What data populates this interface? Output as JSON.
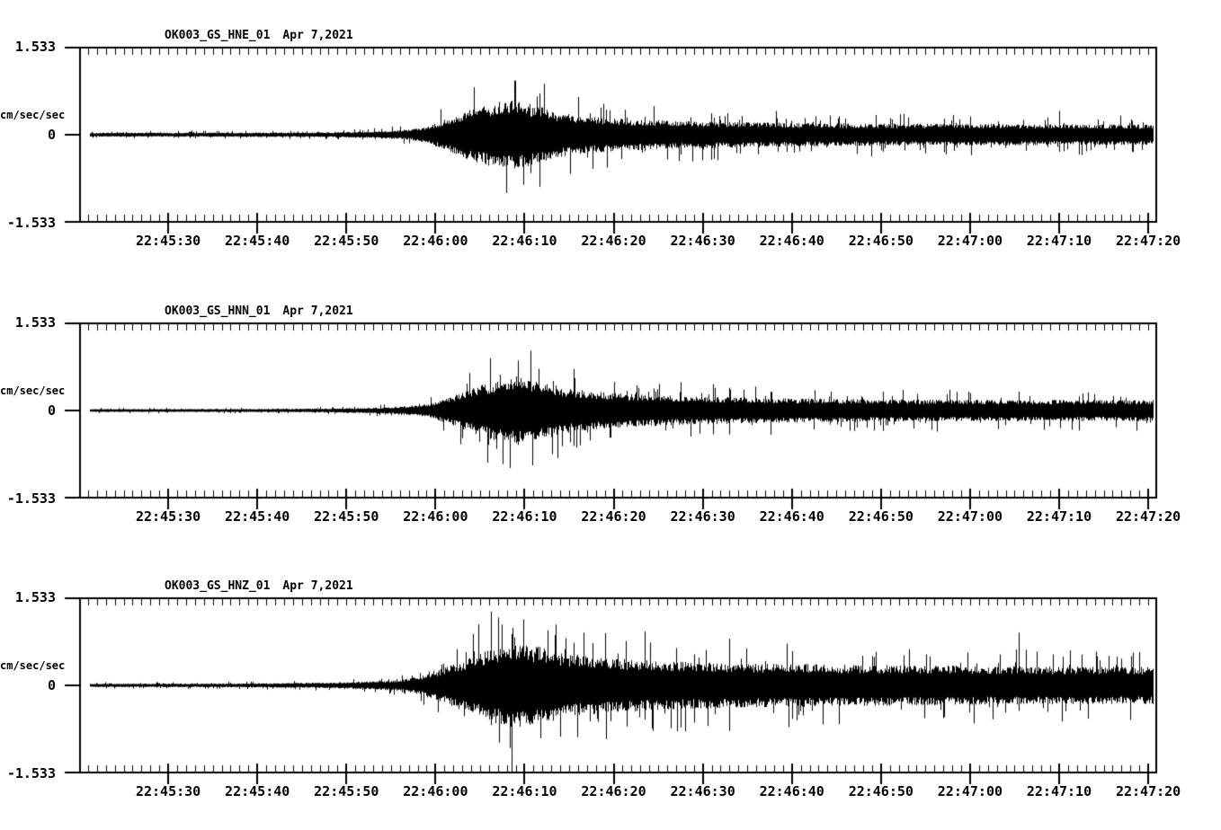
{
  "page": {
    "background_color": "#ffffff",
    "trace_color": "#000000",
    "description": "Three-component strong-motion seismogram, station OK003, Apr 7 2021"
  },
  "chart_data": [
    {
      "type": "line",
      "title": "OK003_GS_HNE_01",
      "date": "Apr 7,2021",
      "ylabel": "cm/sec/sec",
      "ylim": [
        -1.533,
        1.533
      ],
      "ytick_labels": [
        "1.533",
        "0",
        "-1.533"
      ],
      "ytick_values": [
        1.533,
        0,
        -1.533
      ],
      "x_axis": {
        "start_time": "22:45:20",
        "end_time": "22:47:21",
        "span_s": 121,
        "minor_tick_interval_s": 1,
        "major_tick_offsets_s": [
          10,
          20,
          30,
          40,
          50,
          60,
          70,
          80,
          90,
          100,
          110,
          120
        ],
        "major_tick_labels": [
          "22:45:30",
          "22:45:40",
          "22:45:50",
          "22:46:00",
          "22:46:10",
          "22:46:20",
          "22:46:30",
          "22:46:40",
          "22:46:50",
          "22:47:00",
          "22:47:10",
          "22:47:20"
        ]
      },
      "trace_start_s": 1.2,
      "trace_end_s": 120.5,
      "peak_cm_s2": 0.95,
      "envelope": {
        "t_s": [
          0,
          25,
          31,
          34,
          37,
          39,
          41,
          43,
          45,
          47,
          49,
          51,
          53,
          55,
          58,
          62,
          68,
          75,
          85,
          95,
          108,
          121
        ],
        "amp": [
          0.05,
          0.055,
          0.07,
          0.09,
          0.13,
          0.2,
          0.38,
          0.55,
          0.72,
          0.82,
          0.86,
          0.74,
          0.6,
          0.5,
          0.43,
          0.38,
          0.34,
          0.31,
          0.28,
          0.27,
          0.26,
          0.25
        ]
      },
      "feature_spikes": [
        {
          "t_s": 48.9,
          "up": 0.95,
          "down": -0.55
        },
        {
          "t_s": 49.9,
          "up": 0.45,
          "down": -0.88
        },
        {
          "t_s": 110.0,
          "up": 0.42,
          "down": -0.3
        }
      ],
      "seed": 101
    },
    {
      "type": "line",
      "title": "OK003_GS_HNN_01",
      "date": "Apr 7,2021",
      "ylabel": "cm/sec/sec",
      "ylim": [
        -1.533,
        1.533
      ],
      "ytick_labels": [
        "1.533",
        "0",
        "-1.533"
      ],
      "ytick_values": [
        1.533,
        0,
        -1.533
      ],
      "x_axis": {
        "start_time": "22:45:20",
        "end_time": "22:47:21",
        "span_s": 121,
        "minor_tick_interval_s": 1,
        "major_tick_offsets_s": [
          10,
          20,
          30,
          40,
          50,
          60,
          70,
          80,
          90,
          100,
          110,
          120
        ],
        "major_tick_labels": [
          "22:45:30",
          "22:45:40",
          "22:45:50",
          "22:46:00",
          "22:46:10",
          "22:46:20",
          "22:46:30",
          "22:46:40",
          "22:46:50",
          "22:47:00",
          "22:47:10",
          "22:47:20"
        ]
      },
      "trace_start_s": 1.2,
      "trace_end_s": 120.5,
      "peak_cm_s2": 0.92,
      "envelope": {
        "t_s": [
          0,
          22,
          30,
          34,
          37,
          39,
          41,
          43,
          45,
          47,
          49,
          51,
          53,
          55,
          58,
          62,
          67,
          72,
          80,
          90,
          105,
          121
        ],
        "amp": [
          0.035,
          0.04,
          0.055,
          0.075,
          0.11,
          0.16,
          0.3,
          0.46,
          0.62,
          0.76,
          0.86,
          0.78,
          0.65,
          0.54,
          0.46,
          0.4,
          0.36,
          0.33,
          0.3,
          0.27,
          0.26,
          0.26
        ]
      },
      "feature_spikes": [
        {
          "t_s": 46.1,
          "up": 0.92,
          "down": -0.5
        },
        {
          "t_s": 47.5,
          "up": 0.4,
          "down": -0.9
        },
        {
          "t_s": 49.2,
          "up": 0.88,
          "down": -0.45
        },
        {
          "t_s": 73.0,
          "up": 0.4,
          "down": -0.42
        }
      ],
      "seed": 202
    },
    {
      "type": "line",
      "title": "OK003_GS_HNZ_01",
      "date": "Apr 7,2021",
      "ylabel": "cm/sec/sec",
      "ylim": [
        -1.533,
        1.533
      ],
      "ytick_labels": [
        "1.533",
        "0",
        "-1.533"
      ],
      "ytick_values": [
        1.533,
        0,
        -1.533
      ],
      "x_axis": {
        "start_time": "22:45:20",
        "end_time": "22:47:21",
        "span_s": 121,
        "minor_tick_interval_s": 1,
        "major_tick_offsets_s": [
          10,
          20,
          30,
          40,
          50,
          60,
          70,
          80,
          90,
          100,
          110,
          120
        ],
        "major_tick_labels": [
          "22:45:30",
          "22:45:40",
          "22:45:50",
          "22:46:00",
          "22:46:10",
          "22:46:20",
          "22:46:30",
          "22:46:40",
          "22:46:50",
          "22:47:00",
          "22:47:10",
          "22:47:20"
        ]
      },
      "trace_start_s": 1.2,
      "trace_end_s": 120.5,
      "peak_cm_s2": 1.533,
      "envelope": {
        "t_s": [
          0,
          15,
          22,
          28,
          32,
          35,
          37,
          39,
          41,
          43,
          45,
          47,
          49,
          51,
          53,
          55,
          58,
          62,
          66,
          70,
          75,
          82,
          90,
          97,
          105,
          112,
          121
        ],
        "amp": [
          0.04,
          0.045,
          0.055,
          0.07,
          0.09,
          0.12,
          0.17,
          0.26,
          0.44,
          0.62,
          0.8,
          0.95,
          1.06,
          0.97,
          0.88,
          0.78,
          0.7,
          0.64,
          0.59,
          0.57,
          0.54,
          0.52,
          0.5,
          0.49,
          0.47,
          0.46,
          0.46
        ]
      },
      "feature_spikes": [
        {
          "t_s": 48.5,
          "up": 0.9,
          "down": -1.533
        },
        {
          "t_s": 46.2,
          "up": 1.3,
          "down": -0.7
        },
        {
          "t_s": 63.5,
          "up": 0.95,
          "down": -0.6
        },
        {
          "t_s": 73.0,
          "up": 0.82,
          "down": -0.8
        },
        {
          "t_s": 105.5,
          "up": 0.93,
          "down": -0.45
        }
      ],
      "seed": 303
    }
  ]
}
